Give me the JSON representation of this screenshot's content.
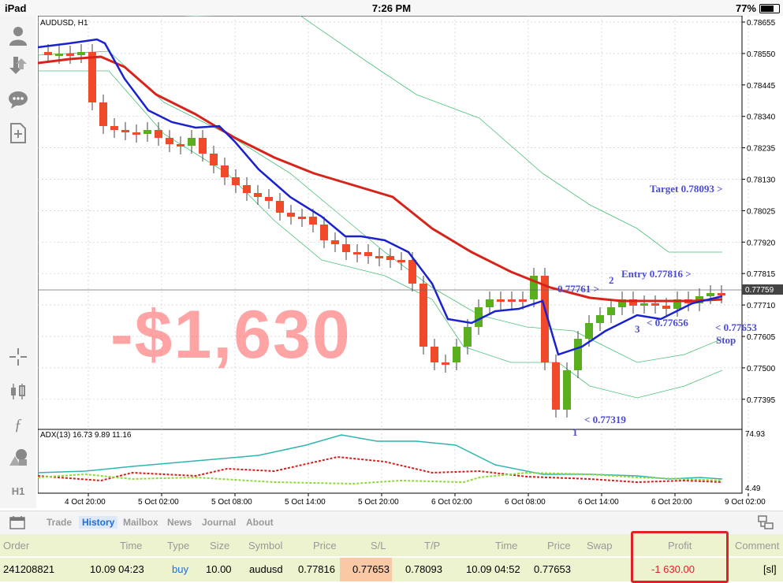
{
  "status_bar": {
    "device": "iPad",
    "time": "7:26 PM",
    "battery": "77%",
    "battery_level": 0.77
  },
  "left_toolbar": {
    "icons": [
      "account-icon",
      "trade-arrows-icon",
      "chat-icon",
      "new-document-icon",
      "crosshair-icon",
      "candlestick-icon",
      "function-icon",
      "objects-icon"
    ],
    "timeframe": "H1"
  },
  "chart": {
    "symbol_label": "AUDUSD, H1",
    "indicator_label": "ADX(13) 16.73 9.89 11.16",
    "current_price": "0.77759",
    "price_axis": [
      "0.78655",
      "0.78550",
      "0.78445",
      "0.78340",
      "0.78235",
      "0.78130",
      "0.78025",
      "0.77920",
      "0.77815",
      "0.77710",
      "0.77605",
      "0.77500",
      "0.77395"
    ],
    "indicator_axis": [
      "74.93",
      "4.49"
    ],
    "time_axis": [
      "4 Oct 20:00",
      "5 Oct 02:00",
      "5 Oct 08:00",
      "5 Oct 14:00",
      "5 Oct 20:00",
      "6 Oct 02:00",
      "6 Oct 08:00",
      "6 Oct 14:00",
      "6 Oct 20:00",
      "9 Oct 02:00"
    ],
    "colors": {
      "bull": "#5aaf1e",
      "bear": "#f04a2a",
      "fast_ma": "#1a22d0",
      "slow_ma": "#d8231b",
      "bands": "#4cbf7a",
      "adx": "#2fb5b0",
      "di_plus": "#8fd83a",
      "di_minus": "#d0201e"
    }
  },
  "overlay": {
    "loss_text": "-$1,630",
    "target": "Target 0.78093 >",
    "entry": "Entry 0.77816 >",
    "level_2": "0.77761 >",
    "label_2": "2",
    "level_3": "< 0.77656",
    "label_3": "3",
    "stop": "< 0.77653",
    "stop_label": "Stop",
    "low": "< 0.77319",
    "label_1": "1"
  },
  "tabs": [
    "Trade",
    "History",
    "Mailbox",
    "News",
    "Journal",
    "About"
  ],
  "active_tab": "History",
  "history": {
    "headers": [
      "Order",
      "Time",
      "Type",
      "Size",
      "Symbol",
      "Price",
      "S/L",
      "T/P",
      "Time",
      "Price",
      "Swap",
      "Profit",
      "Comment"
    ],
    "row": {
      "order": "241208821",
      "open_time": "10.09 04:23",
      "type": "buy",
      "size": "10.00",
      "symbol": "audusd",
      "open_price": "0.77816",
      "sl": "0.77653",
      "tp": "0.78093",
      "close_time": "10.09 04:52",
      "close_price": "0.77653",
      "swap": "",
      "profit": "-1 630.00",
      "comment": "[sl]"
    }
  }
}
